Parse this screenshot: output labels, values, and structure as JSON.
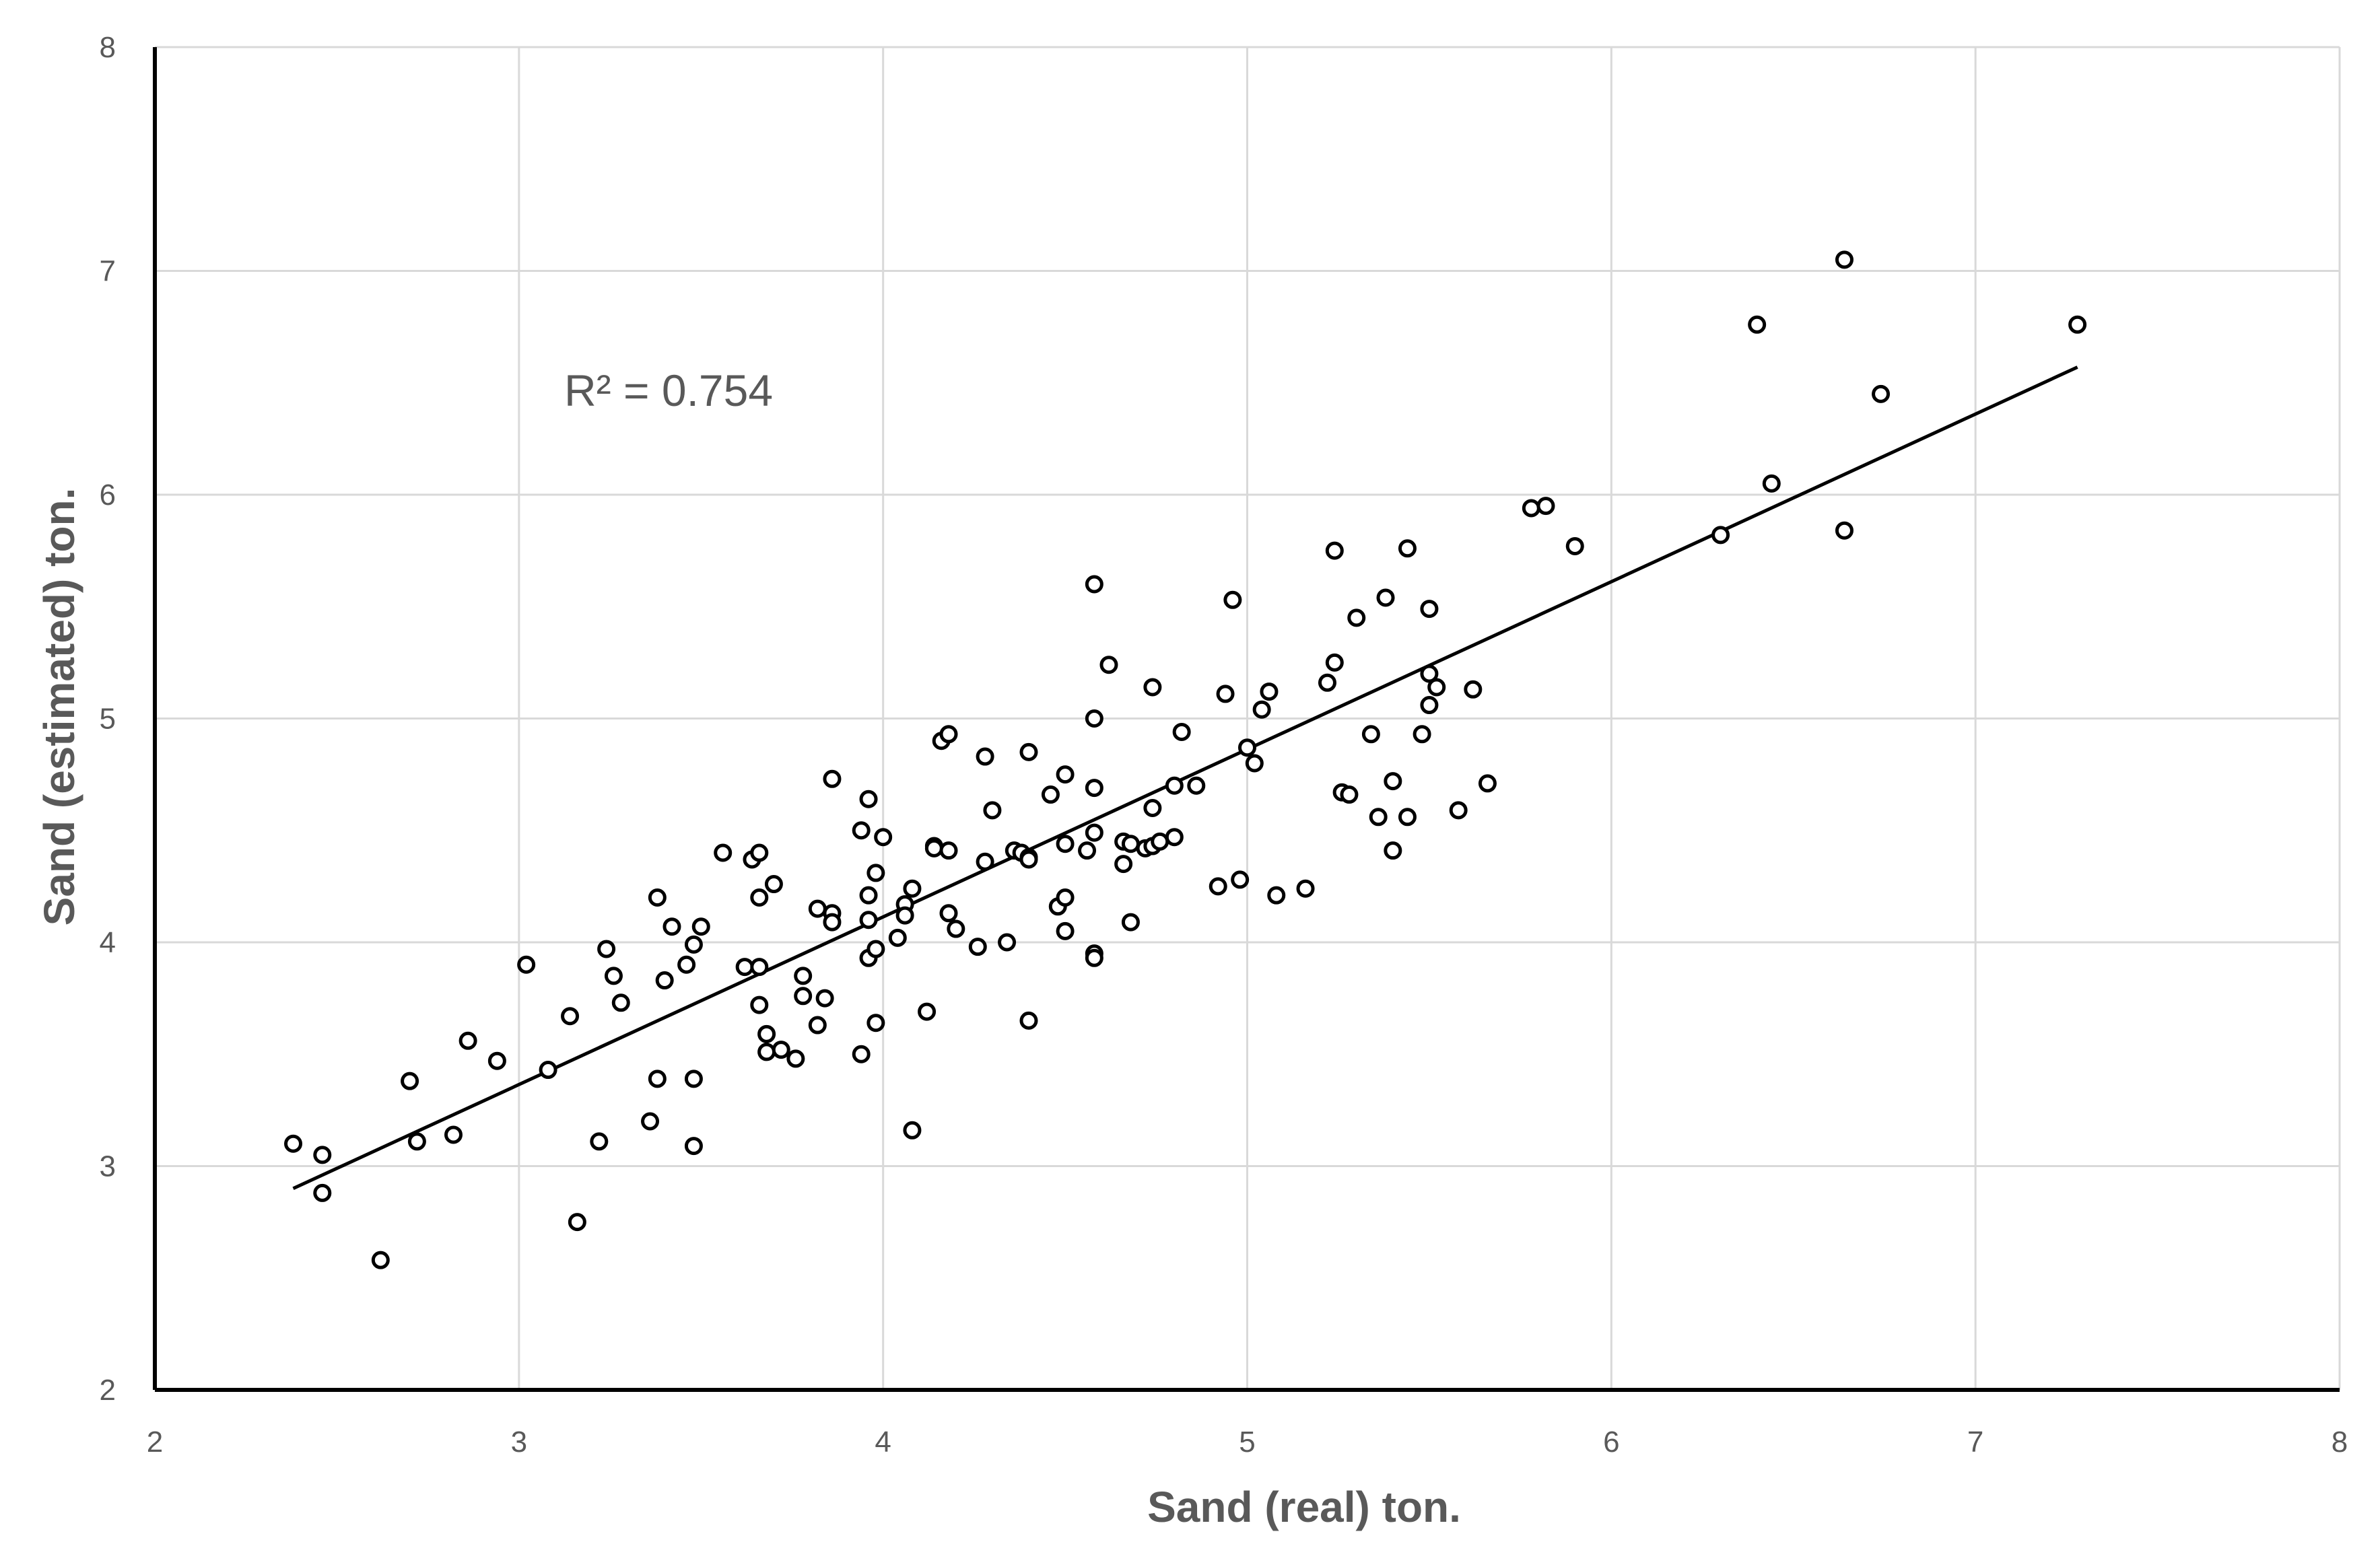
{
  "chart_data": {
    "type": "scatter",
    "xlabel": "Sand (real) ton.",
    "ylabel": "Sand (estimated) ton.",
    "xlim": [
      2,
      8
    ],
    "ylim": [
      2,
      8
    ],
    "x_ticks": [
      "2",
      "3",
      "4",
      "5",
      "6",
      "7",
      "8"
    ],
    "y_ticks": [
      "2",
      "3",
      "4",
      "5",
      "6",
      "7",
      "8"
    ],
    "grid": true,
    "legend": "none",
    "annotation": "R² = 0.754",
    "trendline": {
      "x": [
        2.38,
        7.28
      ],
      "y": [
        2.9,
        6.57
      ]
    },
    "points": [
      {
        "x": 2.38,
        "y": 3.1
      },
      {
        "x": 2.46,
        "y": 3.05
      },
      {
        "x": 2.46,
        "y": 2.88
      },
      {
        "x": 2.62,
        "y": 2.58
      },
      {
        "x": 2.7,
        "y": 3.38
      },
      {
        "x": 2.72,
        "y": 3.11
      },
      {
        "x": 2.82,
        "y": 3.14
      },
      {
        "x": 2.86,
        "y": 3.56
      },
      {
        "x": 2.94,
        "y": 3.47
      },
      {
        "x": 3.02,
        "y": 3.9
      },
      {
        "x": 3.08,
        "y": 3.43
      },
      {
        "x": 3.14,
        "y": 3.67
      },
      {
        "x": 3.16,
        "y": 2.75
      },
      {
        "x": 3.22,
        "y": 3.11
      },
      {
        "x": 3.24,
        "y": 3.97
      },
      {
        "x": 3.26,
        "y": 3.85
      },
      {
        "x": 3.28,
        "y": 3.73
      },
      {
        "x": 3.36,
        "y": 3.2
      },
      {
        "x": 3.38,
        "y": 4.2
      },
      {
        "x": 3.38,
        "y": 3.39
      },
      {
        "x": 3.4,
        "y": 3.83
      },
      {
        "x": 3.42,
        "y": 4.07
      },
      {
        "x": 3.46,
        "y": 3.9
      },
      {
        "x": 3.48,
        "y": 3.99
      },
      {
        "x": 3.48,
        "y": 3.39
      },
      {
        "x": 3.48,
        "y": 3.09
      },
      {
        "x": 3.5,
        "y": 4.07
      },
      {
        "x": 3.56,
        "y": 4.4
      },
      {
        "x": 3.62,
        "y": 3.89
      },
      {
        "x": 3.64,
        "y": 4.37
      },
      {
        "x": 3.66,
        "y": 4.4
      },
      {
        "x": 3.66,
        "y": 4.2
      },
      {
        "x": 3.66,
        "y": 3.89
      },
      {
        "x": 3.66,
        "y": 3.72
      },
      {
        "x": 3.68,
        "y": 3.59
      },
      {
        "x": 3.68,
        "y": 3.51
      },
      {
        "x": 3.7,
        "y": 4.26
      },
      {
        "x": 3.72,
        "y": 3.52
      },
      {
        "x": 3.76,
        "y": 3.48
      },
      {
        "x": 3.78,
        "y": 3.85
      },
      {
        "x": 3.78,
        "y": 3.76
      },
      {
        "x": 3.82,
        "y": 4.15
      },
      {
        "x": 3.82,
        "y": 3.63
      },
      {
        "x": 3.84,
        "y": 3.75
      },
      {
        "x": 3.86,
        "y": 4.73
      },
      {
        "x": 3.86,
        "y": 4.13
      },
      {
        "x": 3.86,
        "y": 4.09
      },
      {
        "x": 3.94,
        "y": 4.5
      },
      {
        "x": 3.94,
        "y": 3.5
      },
      {
        "x": 3.96,
        "y": 4.64
      },
      {
        "x": 3.96,
        "y": 4.21
      },
      {
        "x": 3.96,
        "y": 4.1
      },
      {
        "x": 3.96,
        "y": 3.93
      },
      {
        "x": 3.98,
        "y": 4.31
      },
      {
        "x": 3.98,
        "y": 3.97
      },
      {
        "x": 3.98,
        "y": 3.64
      },
      {
        "x": 4.0,
        "y": 4.47
      },
      {
        "x": 4.04,
        "y": 4.02
      },
      {
        "x": 4.06,
        "y": 4.17
      },
      {
        "x": 4.06,
        "y": 4.12
      },
      {
        "x": 4.08,
        "y": 4.24
      },
      {
        "x": 4.08,
        "y": 3.16
      },
      {
        "x": 4.12,
        "y": 3.69
      },
      {
        "x": 4.14,
        "y": 4.43
      },
      {
        "x": 4.14,
        "y": 4.42
      },
      {
        "x": 4.16,
        "y": 4.9
      },
      {
        "x": 4.18,
        "y": 4.93
      },
      {
        "x": 4.18,
        "y": 4.41
      },
      {
        "x": 4.18,
        "y": 4.13
      },
      {
        "x": 4.2,
        "y": 4.06
      },
      {
        "x": 4.26,
        "y": 3.98
      },
      {
        "x": 4.28,
        "y": 4.83
      },
      {
        "x": 4.28,
        "y": 4.36
      },
      {
        "x": 4.3,
        "y": 4.59
      },
      {
        "x": 4.34,
        "y": 4.0
      },
      {
        "x": 4.36,
        "y": 4.41
      },
      {
        "x": 4.38,
        "y": 4.4
      },
      {
        "x": 4.4,
        "y": 4.85
      },
      {
        "x": 4.4,
        "y": 4.38
      },
      {
        "x": 4.4,
        "y": 4.37
      },
      {
        "x": 4.4,
        "y": 3.65
      },
      {
        "x": 4.46,
        "y": 4.66
      },
      {
        "x": 4.48,
        "y": 4.16
      },
      {
        "x": 4.5,
        "y": 4.75
      },
      {
        "x": 4.5,
        "y": 4.44
      },
      {
        "x": 4.5,
        "y": 4.2
      },
      {
        "x": 4.5,
        "y": 4.05
      },
      {
        "x": 4.56,
        "y": 4.41
      },
      {
        "x": 4.58,
        "y": 5.6
      },
      {
        "x": 4.58,
        "y": 5.0
      },
      {
        "x": 4.58,
        "y": 4.69
      },
      {
        "x": 4.58,
        "y": 4.49
      },
      {
        "x": 4.58,
        "y": 3.95
      },
      {
        "x": 4.58,
        "y": 3.93
      },
      {
        "x": 4.62,
        "y": 5.24
      },
      {
        "x": 4.66,
        "y": 4.45
      },
      {
        "x": 4.66,
        "y": 4.35
      },
      {
        "x": 4.68,
        "y": 4.44
      },
      {
        "x": 4.68,
        "y": 4.09
      },
      {
        "x": 4.72,
        "y": 4.42
      },
      {
        "x": 4.74,
        "y": 5.14
      },
      {
        "x": 4.74,
        "y": 4.6
      },
      {
        "x": 4.74,
        "y": 4.43
      },
      {
        "x": 4.76,
        "y": 4.45
      },
      {
        "x": 4.8,
        "y": 4.7
      },
      {
        "x": 4.8,
        "y": 4.47
      },
      {
        "x": 4.82,
        "y": 4.94
      },
      {
        "x": 4.86,
        "y": 4.7
      },
      {
        "x": 4.92,
        "y": 4.25
      },
      {
        "x": 4.94,
        "y": 5.11
      },
      {
        "x": 4.96,
        "y": 5.53
      },
      {
        "x": 4.98,
        "y": 4.28
      },
      {
        "x": 5.0,
        "y": 4.87
      },
      {
        "x": 5.02,
        "y": 4.8
      },
      {
        "x": 5.04,
        "y": 5.04
      },
      {
        "x": 5.06,
        "y": 5.12
      },
      {
        "x": 5.08,
        "y": 4.21
      },
      {
        "x": 5.16,
        "y": 4.24
      },
      {
        "x": 5.22,
        "y": 5.16
      },
      {
        "x": 5.24,
        "y": 5.75
      },
      {
        "x": 5.24,
        "y": 5.25
      },
      {
        "x": 5.26,
        "y": 4.67
      },
      {
        "x": 5.28,
        "y": 4.66
      },
      {
        "x": 5.3,
        "y": 5.45
      },
      {
        "x": 5.34,
        "y": 4.93
      },
      {
        "x": 5.36,
        "y": 4.56
      },
      {
        "x": 5.38,
        "y": 5.54
      },
      {
        "x": 5.4,
        "y": 4.72
      },
      {
        "x": 5.4,
        "y": 4.41
      },
      {
        "x": 5.44,
        "y": 5.76
      },
      {
        "x": 5.44,
        "y": 4.56
      },
      {
        "x": 5.48,
        "y": 4.93
      },
      {
        "x": 5.5,
        "y": 5.49
      },
      {
        "x": 5.5,
        "y": 5.2
      },
      {
        "x": 5.5,
        "y": 5.06
      },
      {
        "x": 5.52,
        "y": 5.14
      },
      {
        "x": 5.58,
        "y": 4.59
      },
      {
        "x": 5.62,
        "y": 5.13
      },
      {
        "x": 5.66,
        "y": 4.71
      },
      {
        "x": 5.78,
        "y": 5.94
      },
      {
        "x": 5.82,
        "y": 5.95
      },
      {
        "x": 5.9,
        "y": 5.77
      },
      {
        "x": 6.3,
        "y": 5.82
      },
      {
        "x": 6.4,
        "y": 6.76
      },
      {
        "x": 6.44,
        "y": 6.05
      },
      {
        "x": 6.64,
        "y": 7.05
      },
      {
        "x": 6.64,
        "y": 5.84
      },
      {
        "x": 6.74,
        "y": 6.45
      },
      {
        "x": 7.28,
        "y": 6.76
      }
    ]
  }
}
